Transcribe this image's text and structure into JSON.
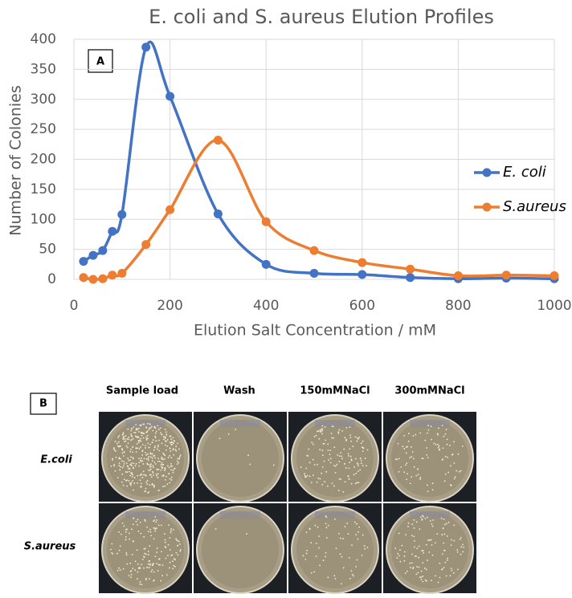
{
  "chart_data": {
    "type": "line",
    "title": "E. coli and S. aureus Elution Profiles",
    "panel_label": "A",
    "x_label": "Elution Salt Concentration / mM",
    "y_label": "Number of Colonies",
    "x": [
      20,
      40,
      60,
      80,
      100,
      150,
      200,
      300,
      400,
      500,
      600,
      700,
      800,
      900,
      1000
    ],
    "series": [
      {
        "name": "E. coli",
        "color": "#4472c4",
        "values": [
          30,
          40,
          48,
          80,
          108,
          387,
          305,
          109,
          25,
          10,
          8,
          3,
          1,
          2,
          1
        ]
      },
      {
        "name": "S.aureus",
        "color": "#ed7d31",
        "values": [
          3,
          0,
          1,
          7,
          10,
          58,
          116,
          232,
          96,
          48,
          28,
          17,
          6,
          7,
          6
        ]
      }
    ],
    "xlim": [
      0,
      1000
    ],
    "xticks": [
      0,
      200,
      400,
      600,
      800,
      1000
    ],
    "ylim": [
      0,
      400
    ],
    "yticks": [
      0,
      50,
      100,
      150,
      200,
      250,
      300,
      350,
      400
    ],
    "grid": true,
    "legend": "right",
    "smooth": true
  },
  "panel_b": {
    "label": "B",
    "columns": [
      "Sample load",
      "Wash",
      "150mMNaCl",
      "300mMNaCl"
    ],
    "rows": [
      "E.coli",
      "S.aureus"
    ]
  }
}
